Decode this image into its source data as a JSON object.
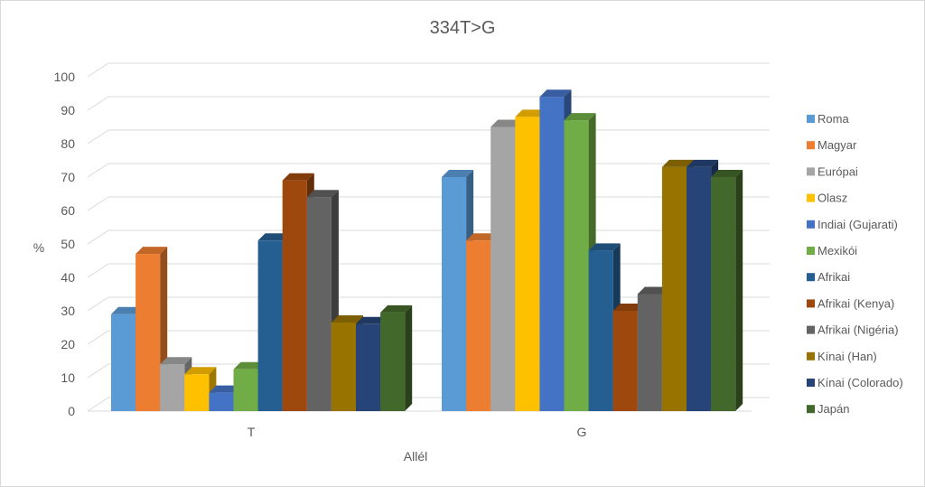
{
  "chart_data": {
    "type": "bar",
    "title": "334T>G",
    "xlabel": "Allél",
    "ylabel": "%",
    "ylim": [
      0,
      100
    ],
    "yticks": [
      0,
      10,
      20,
      30,
      40,
      50,
      60,
      70,
      80,
      90,
      100
    ],
    "grid": true,
    "legend_position": "right",
    "categories": [
      "T",
      "G"
    ],
    "series": [
      {
        "name": "Roma",
        "color": "#5B9BD5",
        "values": [
          29,
          70
        ]
      },
      {
        "name": "Magyar",
        "color": "#ED7D31",
        "values": [
          47,
          51
        ]
      },
      {
        "name": "Európai",
        "color": "#A5A5A5",
        "values": [
          14,
          85
        ]
      },
      {
        "name": "Olasz",
        "color": "#FFC000",
        "values": [
          11,
          88
        ]
      },
      {
        "name": "Indiai (Gujarati)",
        "color": "#4472C4",
        "values": [
          5.5,
          94
        ]
      },
      {
        "name": "Mexikói",
        "color": "#70AD47",
        "values": [
          12.5,
          87
        ]
      },
      {
        "name": "Afrikai",
        "color": "#255E91",
        "values": [
          51,
          48
        ]
      },
      {
        "name": "Afrikai (Kenya)",
        "color": "#9E480E",
        "values": [
          69,
          30
        ]
      },
      {
        "name": "Afrikai (Nigéria)",
        "color": "#636363",
        "values": [
          64,
          35
        ]
      },
      {
        "name": "Kínai (Han)",
        "color": "#997300",
        "values": [
          26.5,
          73
        ]
      },
      {
        "name": "Kínai (Colorado)",
        "color": "#264478",
        "values": [
          26,
          73
        ]
      },
      {
        "name": "Japán",
        "color": "#43682B",
        "values": [
          29.5,
          70
        ]
      }
    ]
  }
}
